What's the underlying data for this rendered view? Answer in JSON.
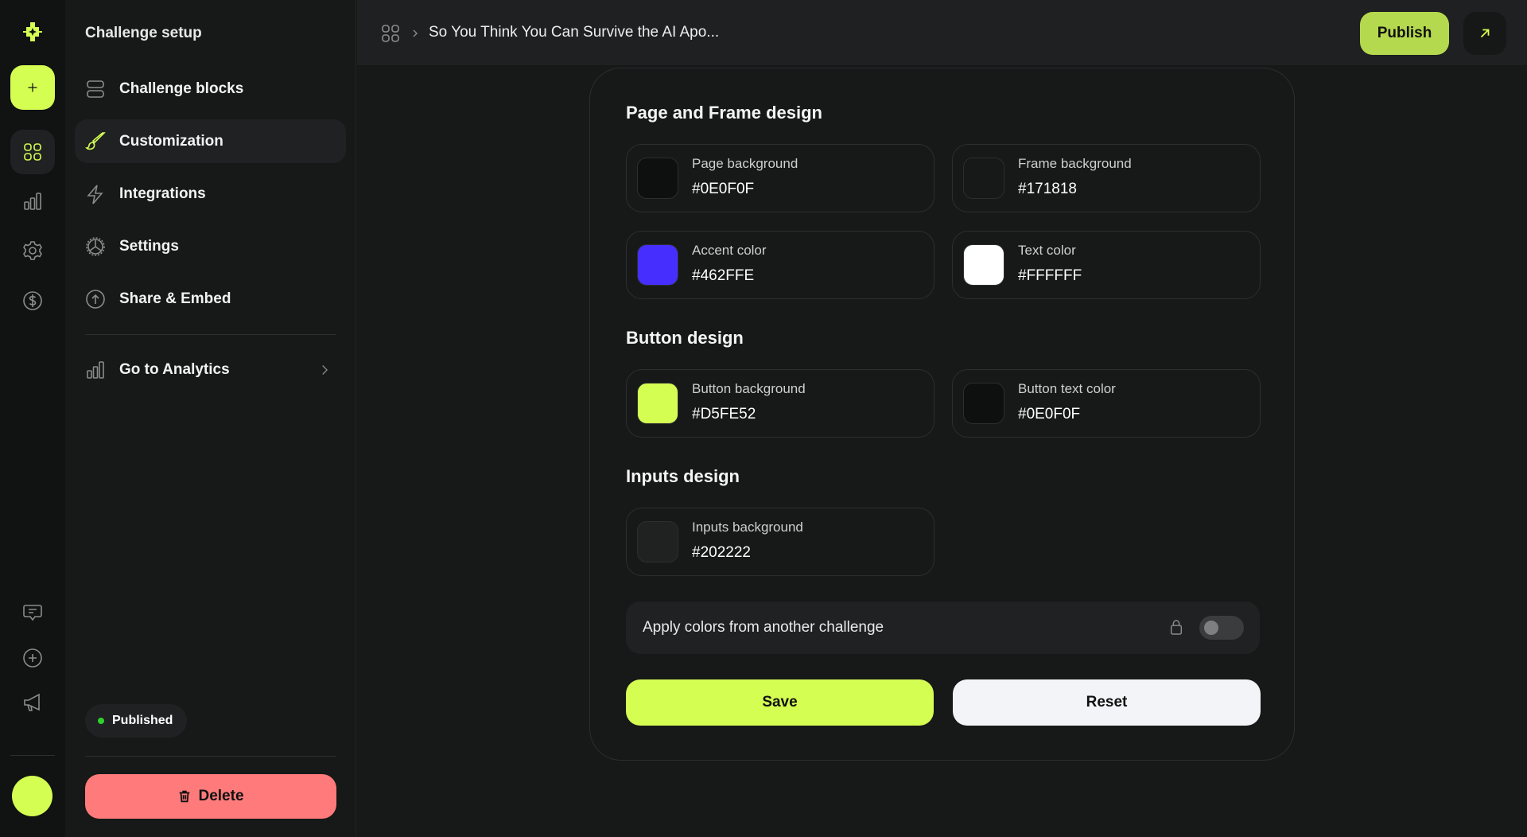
{
  "sidebar": {
    "title": "Challenge setup",
    "items": [
      {
        "label": "Challenge blocks",
        "icon": "blocks-icon"
      },
      {
        "label": "Customization",
        "icon": "brush-icon",
        "active": true
      },
      {
        "label": "Integrations",
        "icon": "lightning-icon"
      },
      {
        "label": "Settings",
        "icon": "gear-icon"
      },
      {
        "label": "Share & Embed",
        "icon": "upload-circle-icon"
      }
    ],
    "analytics": "Go to Analytics",
    "status": "Published",
    "delete": "Delete"
  },
  "header": {
    "title": "So You Think You Can Survive the AI Apo...",
    "publish": "Publish"
  },
  "sections": {
    "page_frame": {
      "title": "Page and Frame design",
      "items": [
        {
          "label": "Page background",
          "value": "#0E0F0F",
          "color": "#0E0F0F"
        },
        {
          "label": "Frame background",
          "value": "#171818",
          "color": "#171818"
        },
        {
          "label": "Accent color",
          "value": "#462FFE",
          "color": "#462FFE"
        },
        {
          "label": "Text color",
          "value": "#FFFFFF",
          "color": "#FFFFFF"
        }
      ]
    },
    "button": {
      "title": "Button design",
      "items": [
        {
          "label": "Button background",
          "value": "#D5FE52",
          "color": "#D5FE52"
        },
        {
          "label": "Button text color",
          "value": "#0E0F0F",
          "color": "#0E0F0F"
        }
      ]
    },
    "inputs": {
      "title": "Inputs design",
      "items": [
        {
          "label": "Inputs background",
          "value": "#202222",
          "color": "#202222"
        }
      ]
    }
  },
  "apply": {
    "label": "Apply colors from another challenge",
    "enabled": false,
    "locked": true
  },
  "actions": {
    "save": "Save",
    "reset": "Reset"
  },
  "colors": {
    "accent": "#D5FE52",
    "delete": "#FF7B7B",
    "published_dot": "#2FD12F"
  }
}
